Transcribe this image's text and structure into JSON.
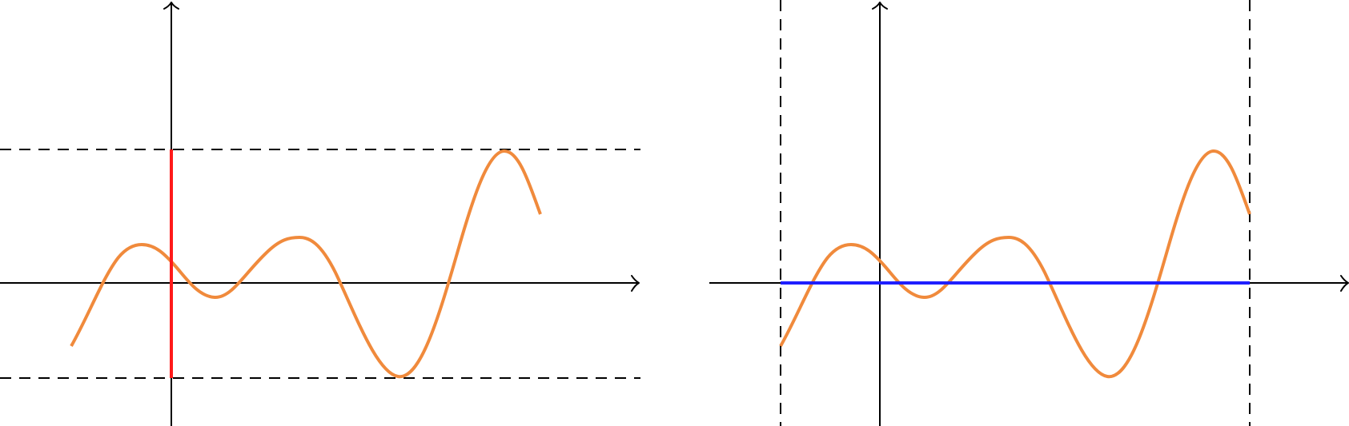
{
  "colors": {
    "curve": "#f08a3c",
    "vertical_range_line": "#ff1a1a",
    "horizontal_domain_line": "#1f1fff",
    "axes": "#000000",
    "guides": "#000000"
  },
  "panels": [
    {
      "name": "left-panel",
      "guides": "horizontal-dashed-lines",
      "highlight": "vertical-red-segment"
    },
    {
      "name": "right-panel",
      "guides": "vertical-dashed-lines",
      "highlight": "horizontal-blue-segment"
    }
  ]
}
